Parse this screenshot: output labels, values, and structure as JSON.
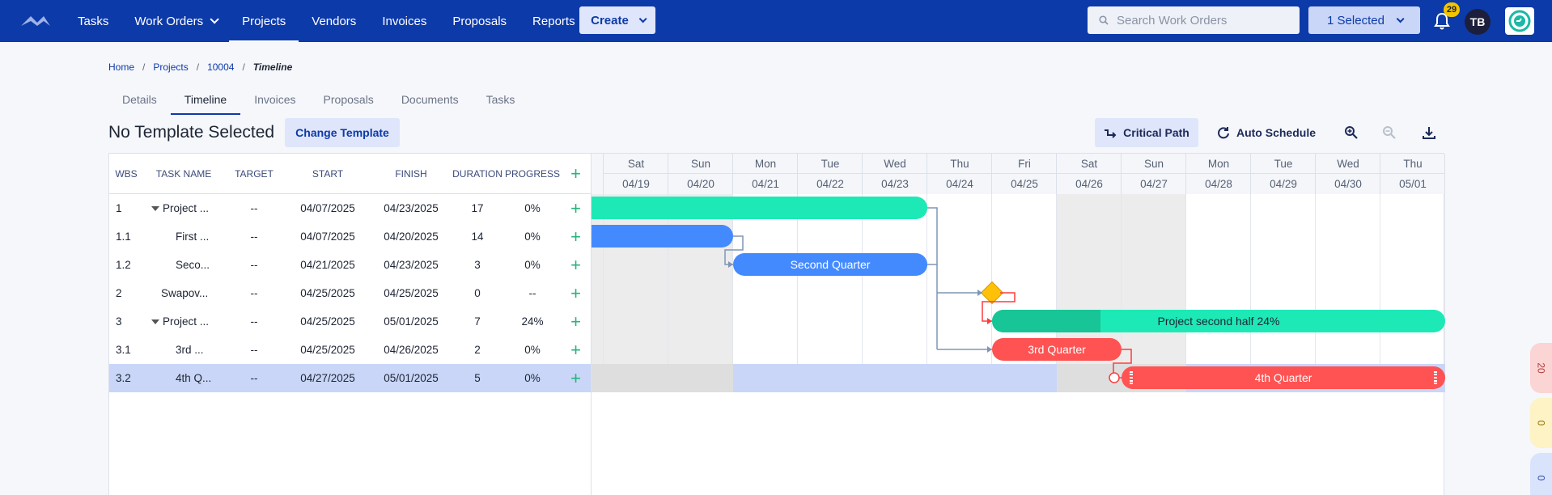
{
  "nav": {
    "items": [
      {
        "label": "Tasks",
        "has_menu": false,
        "active": false
      },
      {
        "label": "Work Orders",
        "has_menu": true,
        "active": false
      },
      {
        "label": "Projects",
        "has_menu": false,
        "active": true
      },
      {
        "label": "Vendors",
        "has_menu": false,
        "active": false
      },
      {
        "label": "Invoices",
        "has_menu": false,
        "active": false
      },
      {
        "label": "Proposals",
        "has_menu": false,
        "active": false
      },
      {
        "label": "Reports",
        "has_menu": false,
        "active": false
      }
    ],
    "create_label": "Create",
    "search_placeholder": "Search Work Orders",
    "selected_label": "1 Selected",
    "notification_count": "29",
    "avatar_initials": "TB",
    "accent": "#0d3aa9"
  },
  "breadcrumb": {
    "home": "Home",
    "projects": "Projects",
    "project_id": "10004",
    "current": "Timeline"
  },
  "tabs": [
    "Details",
    "Timeline",
    "Invoices",
    "Proposals",
    "Documents",
    "Tasks"
  ],
  "active_tab": "Timeline",
  "page": {
    "title": "No Template Selected",
    "change_template": "Change Template",
    "critical_path": "Critical Path",
    "auto_schedule": "Auto Schedule"
  },
  "grid": {
    "headers": {
      "wbs": "WBS",
      "task_name": "TASK NAME",
      "target": "TARGET",
      "start": "START",
      "finish": "FINISH",
      "duration": "DURATION",
      "progress": "PROGRESS"
    },
    "rows": [
      {
        "wbs": "1",
        "name": "Project ...",
        "target": "--",
        "start": "04/07/2025",
        "finish": "04/23/2025",
        "duration": "17",
        "progress": "0%",
        "parent": true,
        "indent": 0,
        "selected": false
      },
      {
        "wbs": "1.1",
        "name": "First ...",
        "target": "--",
        "start": "04/07/2025",
        "finish": "04/20/2025",
        "duration": "14",
        "progress": "0%",
        "parent": false,
        "indent": 1,
        "selected": false
      },
      {
        "wbs": "1.2",
        "name": "Seco...",
        "target": "--",
        "start": "04/21/2025",
        "finish": "04/23/2025",
        "duration": "3",
        "progress": "0%",
        "parent": false,
        "indent": 1,
        "selected": false
      },
      {
        "wbs": "2",
        "name": "Swapov...",
        "target": "--",
        "start": "04/25/2025",
        "finish": "04/25/2025",
        "duration": "0",
        "progress": "--",
        "parent": false,
        "indent": 0,
        "selected": false
      },
      {
        "wbs": "3",
        "name": "Project ...",
        "target": "--",
        "start": "04/25/2025",
        "finish": "05/01/2025",
        "duration": "7",
        "progress": "24%",
        "parent": true,
        "indent": 0,
        "selected": false
      },
      {
        "wbs": "3.1",
        "name": "3rd ...",
        "target": "--",
        "start": "04/25/2025",
        "finish": "04/26/2025",
        "duration": "2",
        "progress": "0%",
        "parent": false,
        "indent": 1,
        "selected": false
      },
      {
        "wbs": "3.2",
        "name": "4th Q...",
        "target": "--",
        "start": "04/27/2025",
        "finish": "05/01/2025",
        "duration": "5",
        "progress": "0%",
        "parent": false,
        "indent": 1,
        "selected": true
      }
    ]
  },
  "timeline": {
    "days": [
      {
        "name": "Sat",
        "date": "04/19",
        "weekend": true
      },
      {
        "name": "Sun",
        "date": "04/20",
        "weekend": true
      },
      {
        "name": "Mon",
        "date": "04/21",
        "weekend": false
      },
      {
        "name": "Tue",
        "date": "04/22",
        "weekend": false
      },
      {
        "name": "Wed",
        "date": "04/23",
        "weekend": false
      },
      {
        "name": "Thu",
        "date": "04/24",
        "weekend": false
      },
      {
        "name": "Fri",
        "date": "04/25",
        "weekend": false
      },
      {
        "name": "Sat",
        "date": "04/26",
        "weekend": true
      },
      {
        "name": "Sun",
        "date": "04/27",
        "weekend": true
      },
      {
        "name": "Mon",
        "date": "04/28",
        "weekend": false
      },
      {
        "name": "Tue",
        "date": "04/29",
        "weekend": false
      },
      {
        "name": "Wed",
        "date": "04/30",
        "weekend": false
      },
      {
        "name": "Thu",
        "date": "05/01",
        "weekend": false
      }
    ],
    "bars": {
      "second_quarter": "Second Quarter",
      "project_second_half": "Project second half 24%",
      "third_quarter": "3rd Quarter",
      "fourth_quarter": "4th Quarter"
    },
    "colors": {
      "summary": "#1de9b6",
      "summary_progress": "#17c596",
      "task": "#448aff",
      "critical": "#ff5252",
      "milestone": "#ffc107"
    }
  },
  "side_pills": [
    "20",
    "0",
    "0"
  ]
}
